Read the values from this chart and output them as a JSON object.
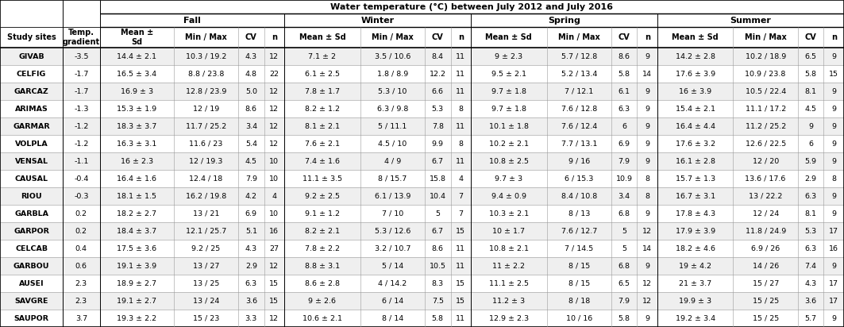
{
  "title": "Water temperature (°C) between July 2012 and July 2016",
  "season_headers": [
    "Fall",
    "Winter",
    "Spring",
    "Summer"
  ],
  "col_header_row1": [
    "Study sites",
    "Temp.\ngradient",
    "Mean ±\nSd",
    "Min / Max",
    "CV",
    "n",
    "Mean ± Sd",
    "Min / Max",
    "CV",
    "n",
    "Mean ± Sd",
    "Min / Max",
    "CV",
    "n",
    "Mean ± Sd",
    "Min / Max",
    "CV",
    "n"
  ],
  "rows": [
    [
      "GIVAB",
      "-3.5",
      "14.4 ± 2.1",
      "10.3 / 19.2",
      "4.3",
      "12",
      "7.1 ± 2",
      "3.5 / 10.6",
      "8.4",
      "11",
      "9 ± 2.3",
      "5.7 / 12.8",
      "8.6",
      "9",
      "14.2 ± 2.8",
      "10.2 / 18.9",
      "6.5",
      "9"
    ],
    [
      "CELFIG",
      "-1.7",
      "16.5 ± 3.4",
      "8.8 / 23.8",
      "4.8",
      "22",
      "6.1 ± 2.5",
      "1.8 / 8.9",
      "12.2",
      "11",
      "9.5 ± 2.1",
      "5.2 / 13.4",
      "5.8",
      "14",
      "17.6 ± 3.9",
      "10.9 / 23.8",
      "5.8",
      "15"
    ],
    [
      "GARCAZ",
      "-1.7",
      "16.9 ± 3",
      "12.8 / 23.9",
      "5.0",
      "12",
      "7.8 ± 1.7",
      "5.3 / 10",
      "6.6",
      "11",
      "9.7 ± 1.8",
      "7 / 12.1",
      "6.1",
      "9",
      "16 ± 3.9",
      "10.5 / 22.4",
      "8.1",
      "9"
    ],
    [
      "ARIMAS",
      "-1.3",
      "15.3 ± 1.9",
      "12 / 19",
      "8.6",
      "12",
      "8.2 ± 1.2",
      "6.3 / 9.8",
      "5.3",
      "8",
      "9.7 ± 1.8",
      "7.6 / 12.8",
      "6.3",
      "9",
      "15.4 ± 2.1",
      "11.1 / 17.2",
      "4.5",
      "9"
    ],
    [
      "GARMAR",
      "-1.2",
      "18.3 ± 3.7",
      "11.7 / 25.2",
      "3.4",
      "12",
      "8.1 ± 2.1",
      "5 / 11.1",
      "7.8",
      "11",
      "10.1 ± 1.8",
      "7.6 / 12.4",
      "6",
      "9",
      "16.4 ± 4.4",
      "11.2 / 25.2",
      "9",
      "9"
    ],
    [
      "VOLPLA",
      "-1.2",
      "16.3 ± 3.1",
      "11.6 / 23",
      "5.4",
      "12",
      "7.6 ± 2.1",
      "4.5 / 10",
      "9.9",
      "8",
      "10.2 ± 2.1",
      "7.7 / 13.1",
      "6.9",
      "9",
      "17.6 ± 3.2",
      "12.6 / 22.5",
      "6",
      "9"
    ],
    [
      "VENSAL",
      "-1.1",
      "16 ± 2.3",
      "12 / 19.3",
      "4.5",
      "10",
      "7.4 ± 1.6",
      "4 / 9",
      "6.7",
      "11",
      "10.8 ± 2.5",
      "9 / 16",
      "7.9",
      "9",
      "16.1 ± 2.8",
      "12 / 20",
      "5.9",
      "9"
    ],
    [
      "CAUSAL",
      "-0.4",
      "16.4 ± 1.6",
      "12.4 / 18",
      "7.9",
      "10",
      "11.1 ± 3.5",
      "8 / 15.7",
      "15.8",
      "4",
      "9.7 ± 3",
      "6 / 15.3",
      "10.9",
      "8",
      "15.7 ± 1.3",
      "13.6 / 17.6",
      "2.9",
      "8"
    ],
    [
      "RIOU",
      "-0.3",
      "18.1 ± 1.5",
      "16.2 / 19.8",
      "4.2",
      "4",
      "9.2 ± 2.5",
      "6.1 / 13.9",
      "10.4",
      "7",
      "9.4 ± 0.9",
      "8.4 / 10.8",
      "3.4",
      "8",
      "16.7 ± 3.1",
      "13 / 22.2",
      "6.3",
      "9"
    ],
    [
      "GARBLA",
      "0.2",
      "18.2 ± 2.7",
      "13 / 21",
      "6.9",
      "10",
      "9.1 ± 1.2",
      "7 / 10",
      "5",
      "7",
      "10.3 ± 2.1",
      "8 / 13",
      "6.8",
      "9",
      "17.8 ± 4.3",
      "12 / 24",
      "8.1",
      "9"
    ],
    [
      "GARPOR",
      "0.2",
      "18.4 ± 3.7",
      "12.1 / 25.7",
      "5.1",
      "16",
      "8.2 ± 2.1",
      "5.3 / 12.6",
      "6.7",
      "15",
      "10 ± 1.7",
      "7.6 / 12.7",
      "5",
      "12",
      "17.9 ± 3.9",
      "11.8 / 24.9",
      "5.3",
      "17"
    ],
    [
      "CELCAB",
      "0.4",
      "17.5 ± 3.6",
      "9.2 / 25",
      "4.3",
      "27",
      "7.8 ± 2.2",
      "3.2 / 10.7",
      "8.6",
      "11",
      "10.8 ± 2.1",
      "7 / 14.5",
      "5",
      "14",
      "18.2 ± 4.6",
      "6.9 / 26",
      "6.3",
      "16"
    ],
    [
      "GARBOU",
      "0.6",
      "19.1 ± 3.9",
      "13 / 27",
      "2.9",
      "12",
      "8.8 ± 3.1",
      "5 / 14",
      "10.5",
      "11",
      "11 ± 2.2",
      "8 / 15",
      "6.8",
      "9",
      "19 ± 4.2",
      "14 / 26",
      "7.4",
      "9"
    ],
    [
      "AUSEI",
      "2.3",
      "18.9 ± 2.7",
      "13 / 25",
      "6.3",
      "15",
      "8.6 ± 2.8",
      "4 / 14.2",
      "8.3",
      "15",
      "11.1 ± 2.5",
      "8 / 15",
      "6.5",
      "12",
      "21 ± 3.7",
      "15 / 27",
      "4.3",
      "17"
    ],
    [
      "SAVGRE",
      "2.3",
      "19.1 ± 2.7",
      "13 / 24",
      "3.6",
      "15",
      "9 ± 2.6",
      "6 / 14",
      "7.5",
      "15",
      "11.2 ± 3",
      "8 / 18",
      "7.9",
      "12",
      "19.9 ± 3",
      "15 / 25",
      "3.6",
      "17"
    ],
    [
      "SAUPOR",
      "3.7",
      "19.3 ± 2.2",
      "15 / 23",
      "3.3",
      "12",
      "10.6 ± 2.1",
      "8 / 14",
      "5.8",
      "11",
      "12.9 ± 2.3",
      "10 / 16",
      "5.8",
      "9",
      "19.2 ± 3.4",
      "15 / 25",
      "5.7",
      "9"
    ]
  ]
}
